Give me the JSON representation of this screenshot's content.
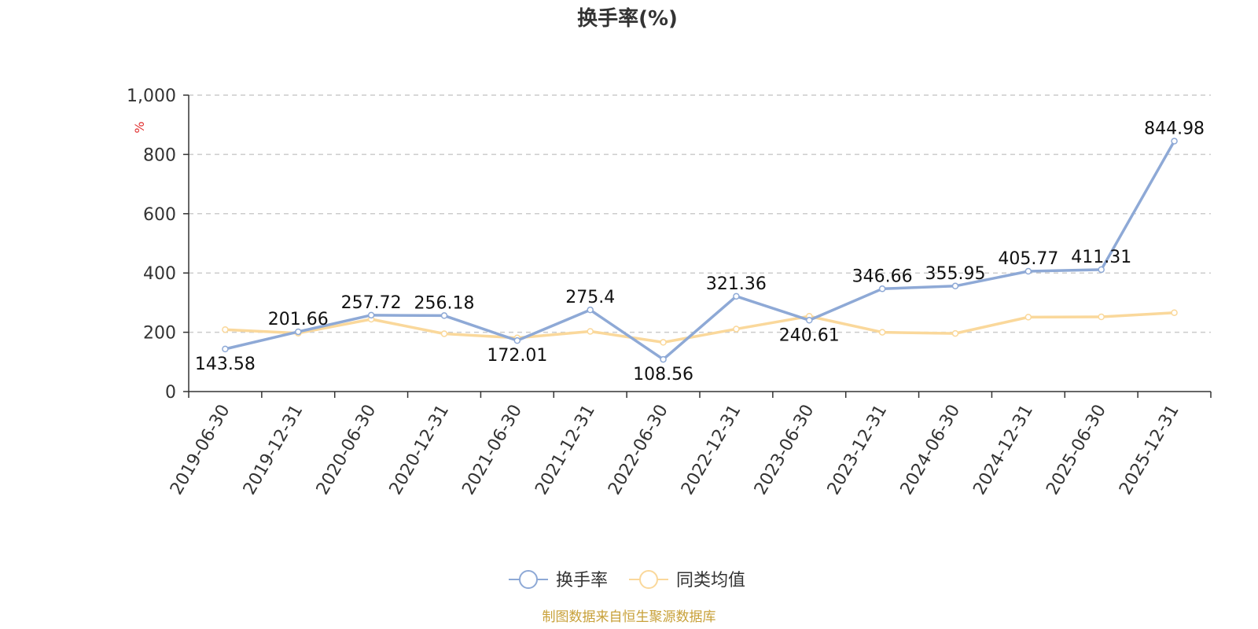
{
  "chart_data": {
    "type": "line",
    "title": "换手率(%)",
    "ylabel": "%",
    "ylim": [
      0,
      1000
    ],
    "yticks": [
      0,
      200,
      400,
      600,
      800,
      1000
    ],
    "ytick_labels": [
      "0",
      "200",
      "400",
      "600",
      "800",
      "1,000"
    ],
    "grid": true,
    "legend_position": "bottom-center",
    "categories": [
      "2019-06-30",
      "2019-12-31",
      "2020-06-30",
      "2020-12-31",
      "2021-06-30",
      "2021-12-31",
      "2022-06-30",
      "2022-12-31",
      "2023-06-30",
      "2023-12-31",
      "2024-06-30",
      "2024-12-31",
      "2025-06-30",
      "2025-12-31"
    ],
    "series": [
      {
        "name": "换手率",
        "color": "#8EA9D6",
        "values": [
          143.58,
          201.66,
          257.72,
          256.18,
          172.01,
          275.4,
          108.56,
          321.36,
          240.61,
          346.66,
          355.95,
          405.77,
          411.31,
          844.98
        ],
        "labels": [
          "143.58",
          "201.66",
          "257.72",
          "256.18",
          "172.01",
          "275.4",
          "108.56",
          "321.36",
          "240.61",
          "346.66",
          "355.95",
          "405.77",
          "411.31",
          "844.98"
        ]
      },
      {
        "name": "同类均值",
        "color": "#FAD89B",
        "values": [
          209,
          197,
          244,
          195,
          181,
          203,
          166,
          211,
          254,
          200,
          196,
          251,
          252,
          266
        ]
      }
    ]
  },
  "source": {
    "text": "制图数据来自恒生聚源数据库",
    "color": "#C8A13A"
  },
  "unit_color": "#E03030"
}
